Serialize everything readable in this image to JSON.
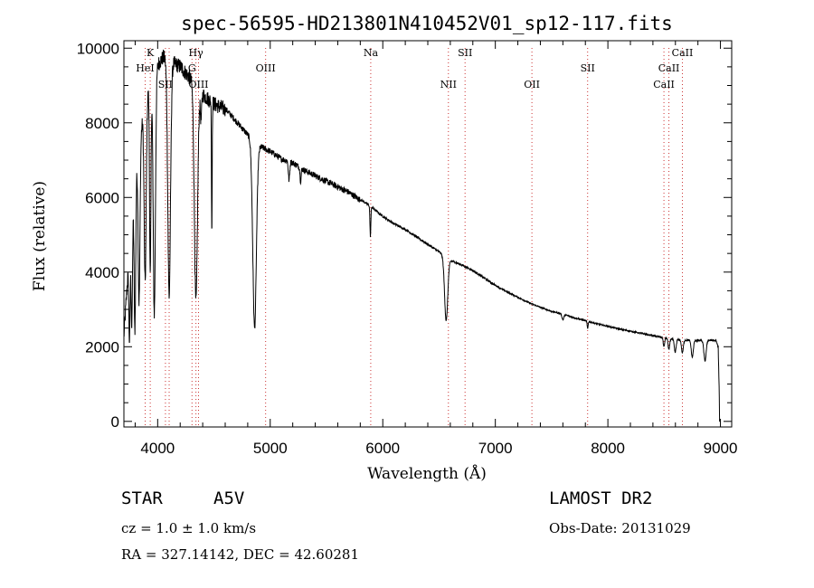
{
  "chart_data": {
    "type": "line",
    "title": "spec-56595-HD213801N410452V01_sp12-117.fits",
    "xlabel": "Wavelength (Å)",
    "ylabel": "Flux (relative)",
    "xlim": [
      3700,
      9100
    ],
    "ylim": [
      -150,
      10200
    ],
    "xticks": [
      4000,
      5000,
      6000,
      7000,
      8000,
      9000
    ],
    "yticks": [
      0,
      2000,
      4000,
      6000,
      8000,
      10000
    ],
    "continuum": [
      [
        3700,
        2300
      ],
      [
        3760,
        5200
      ],
      [
        3800,
        6600
      ],
      [
        3850,
        7800
      ],
      [
        3890,
        8600
      ],
      [
        3950,
        9300
      ],
      [
        4000,
        9600
      ],
      [
        4050,
        9800
      ],
      [
        4100,
        9700
      ],
      [
        4200,
        9550
      ],
      [
        4300,
        9200
      ],
      [
        4400,
        8800
      ],
      [
        4500,
        8550
      ],
      [
        4600,
        8400
      ],
      [
        4700,
        8050
      ],
      [
        4800,
        7700
      ],
      [
        4900,
        7400
      ],
      [
        5000,
        7250
      ],
      [
        5100,
        7050
      ],
      [
        5200,
        6950
      ],
      [
        5300,
        6750
      ],
      [
        5400,
        6600
      ],
      [
        5500,
        6450
      ],
      [
        5600,
        6300
      ],
      [
        5700,
        6150
      ],
      [
        5800,
        5950
      ],
      [
        5900,
        5750
      ],
      [
        6000,
        5500
      ],
      [
        6100,
        5300
      ],
      [
        6200,
        5150
      ],
      [
        6300,
        4950
      ],
      [
        6400,
        4750
      ],
      [
        6500,
        4550
      ],
      [
        6600,
        4320
      ],
      [
        6700,
        4200
      ],
      [
        6800,
        4050
      ],
      [
        6900,
        3850
      ],
      [
        7000,
        3650
      ],
      [
        7100,
        3480
      ],
      [
        7200,
        3330
      ],
      [
        7300,
        3180
      ],
      [
        7400,
        3060
      ],
      [
        7500,
        2950
      ],
      [
        7600,
        2880
      ],
      [
        7700,
        2780
      ],
      [
        7800,
        2700
      ],
      [
        7900,
        2620
      ],
      [
        8000,
        2550
      ],
      [
        8100,
        2480
      ],
      [
        8200,
        2420
      ],
      [
        8300,
        2360
      ],
      [
        8400,
        2300
      ],
      [
        8500,
        2250
      ],
      [
        8600,
        2200
      ],
      [
        8700,
        2180
      ],
      [
        8800,
        2170
      ],
      [
        8900,
        2180
      ],
      [
        8960,
        2170
      ],
      [
        8980,
        2000
      ],
      [
        8995,
        0
      ]
    ],
    "absorption_lines": [
      {
        "center": 3750,
        "depth": 2500,
        "width": 6
      },
      {
        "center": 3770,
        "depth": 3000,
        "width": 6
      },
      {
        "center": 3798,
        "depth": 4000,
        "width": 7
      },
      {
        "center": 3835,
        "depth": 4200,
        "width": 8
      },
      {
        "center": 3889,
        "depth": 4800,
        "width": 9
      },
      {
        "center": 3934,
        "depth": 5200,
        "width": 6
      },
      {
        "center": 3970,
        "depth": 6500,
        "width": 10
      },
      {
        "center": 4102,
        "depth": 6300,
        "width": 12
      },
      {
        "center": 4340,
        "depth": 5800,
        "width": 14
      },
      {
        "center": 4385,
        "depth": 700,
        "width": 6
      },
      {
        "center": 4481,
        "depth": 3500,
        "width": 3
      },
      {
        "center": 4861,
        "depth": 5000,
        "width": 16
      },
      {
        "center": 5167,
        "depth": 500,
        "width": 6
      },
      {
        "center": 5270,
        "depth": 350,
        "width": 5
      },
      {
        "center": 5890,
        "depth": 800,
        "width": 4
      },
      {
        "center": 6563,
        "depth": 1700,
        "width": 14
      },
      {
        "center": 7600,
        "depth": 150,
        "width": 8
      },
      {
        "center": 7820,
        "depth": 200,
        "width": 4
      },
      {
        "center": 8498,
        "depth": 250,
        "width": 6
      },
      {
        "center": 8542,
        "depth": 300,
        "width": 7
      },
      {
        "center": 8598,
        "depth": 350,
        "width": 8
      },
      {
        "center": 8662,
        "depth": 350,
        "width": 8
      },
      {
        "center": 8750,
        "depth": 450,
        "width": 9
      },
      {
        "center": 8863,
        "depth": 550,
        "width": 10
      }
    ],
    "line_markers": [
      {
        "label": "K",
        "wavelength": 3934,
        "row": 0
      },
      {
        "label": "HeI",
        "wavelength": 3889,
        "row": 1
      },
      {
        "label": "SII",
        "wavelength": 4069,
        "row": 2
      },
      {
        "label": "Hγ",
        "wavelength": 4340,
        "row": 0
      },
      {
        "label": "G",
        "wavelength": 4305,
        "row": 1
      },
      {
        "label": "OIII",
        "wavelength": 4363,
        "row": 2
      },
      {
        "label": "OIII",
        "wavelength": 4959,
        "row": 1
      },
      {
        "label": "Na",
        "wavelength": 5893,
        "row": 0
      },
      {
        "label": "SII",
        "wavelength": 6731,
        "row": 0
      },
      {
        "label": "NII",
        "wavelength": 6583,
        "row": 2
      },
      {
        "label": "OII",
        "wavelength": 7325,
        "row": 2
      },
      {
        "label": "SII",
        "wavelength": 7820,
        "row": 1
      },
      {
        "label": "CaII",
        "wavelength": 8662,
        "row": 0
      },
      {
        "label": "CaII",
        "wavelength": 8542,
        "row": 1
      },
      {
        "label": "CaII",
        "wavelength": 8498,
        "row": 2
      }
    ],
    "extra_marker_lines": [
      4102,
      3889
    ],
    "colors": {
      "axis": "#000000",
      "line": "#000000",
      "marker_line": "#cc3333"
    }
  },
  "info": {
    "object_type": "STAR",
    "subclass": "A5V",
    "survey": "LAMOST DR2",
    "redshift": "cz = 1.0 ± 1.0 km/s",
    "obs_date": "Obs-Date: 20131029",
    "coords": "RA = 327.14142, DEC =  42.60281"
  }
}
